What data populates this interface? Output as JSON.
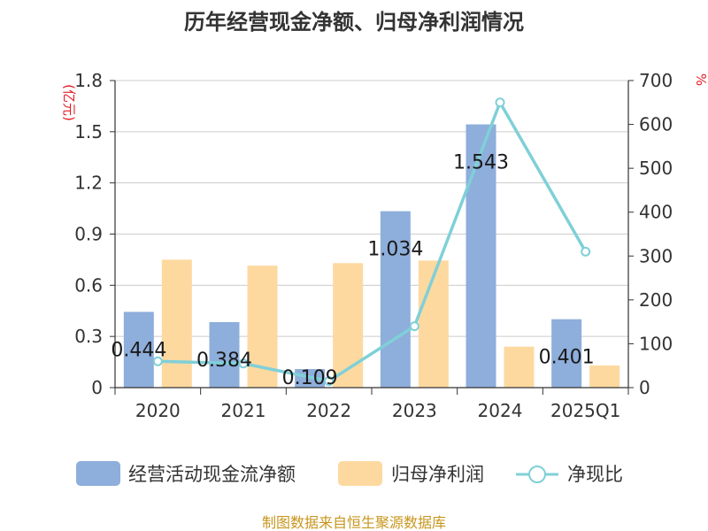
{
  "chart_data": {
    "type": "bar",
    "title": "历年经营现金净额、归母净利润情况",
    "categories": [
      "2020",
      "2021",
      "2022",
      "2023",
      "2024",
      "2025Q1"
    ],
    "left_axis": {
      "unit_label": "(亿元)",
      "ylim": [
        0,
        1.8
      ],
      "ticks": [
        "0",
        "0.3",
        "0.6",
        "0.9",
        "1.2",
        "1.5",
        "1.8"
      ]
    },
    "right_axis": {
      "unit_label": "%",
      "ylim": [
        0,
        700
      ],
      "ticks": [
        "0",
        "100",
        "200",
        "300",
        "400",
        "500",
        "600",
        "700"
      ]
    },
    "series": [
      {
        "name": "经营活动现金流净额",
        "type": "bar",
        "axis": "left",
        "color": "#8eaedb",
        "values": [
          0.444,
          0.384,
          0.109,
          1.034,
          1.543,
          0.401
        ],
        "labels": [
          "0.444",
          "0.384",
          "0.109",
          "1.034",
          "1.543",
          "0.401"
        ]
      },
      {
        "name": "归母净利润",
        "type": "bar",
        "axis": "left",
        "color": "#fdd9a0",
        "values": [
          0.75,
          0.715,
          0.73,
          0.745,
          0.24,
          0.13
        ]
      },
      {
        "name": "净现比",
        "type": "line",
        "axis": "right",
        "color": "#7fd0d8",
        "values": [
          60,
          55,
          15,
          140,
          650,
          310
        ]
      }
    ],
    "legend_position": "bottom",
    "grid": true
  },
  "source": "制图数据来自恒生聚源数据库"
}
